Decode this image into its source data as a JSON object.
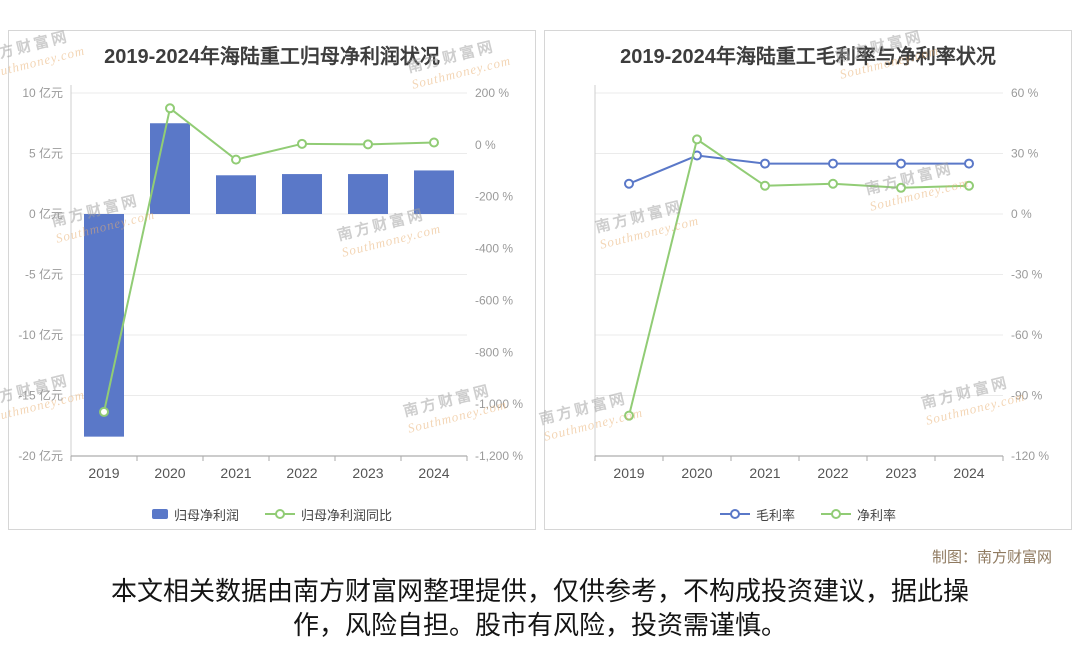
{
  "watermark": {
    "cn": "南方财富网",
    "en": "Southmoney.com"
  },
  "chart_data": [
    {
      "type": "bar",
      "title": "2019-2024年海陆重工归母净利润状况",
      "categories": [
        "2019",
        "2020",
        "2021",
        "2022",
        "2023",
        "2024"
      ],
      "bar_series": {
        "name": "归母净利润",
        "unit": "亿元",
        "color": "#5a78c8",
        "values": [
          -18.4,
          7.5,
          3.2,
          3.3,
          3.3,
          3.6
        ]
      },
      "line_series": [
        {
          "name": "归母净利润同比",
          "unit": "%",
          "color": "#91cc75",
          "values": [
            -1030,
            141,
            -57,
            4,
            2,
            9
          ]
        }
      ],
      "left_axis": {
        "ticks": [
          10,
          5,
          0,
          -5,
          -10,
          -15,
          -20
        ],
        "suffix": " 亿元",
        "min": -20,
        "max": 10
      },
      "right_axis": {
        "ticks": [
          200,
          0,
          -200,
          -400,
          -600,
          -800,
          -1000,
          -1200
        ],
        "suffix": " %",
        "min": -1200,
        "max": 200
      },
      "legend": [
        "归母净利润",
        "归母净利润同比"
      ],
      "grid": true,
      "legend_position": "bottom"
    },
    {
      "type": "line",
      "title": "2019-2024年海陆重工毛利率与净利率状况",
      "categories": [
        "2019",
        "2020",
        "2021",
        "2022",
        "2023",
        "2024"
      ],
      "line_series": [
        {
          "name": "毛利率",
          "unit": "%",
          "color": "#5a78c8",
          "values": [
            15,
            29,
            25,
            25,
            25,
            25
          ]
        },
        {
          "name": "净利率",
          "unit": "%",
          "color": "#91cc75",
          "values": [
            -100,
            37,
            14,
            15,
            13,
            14
          ]
        }
      ],
      "right_axis": {
        "ticks": [
          60,
          30,
          0,
          -30,
          -60,
          -90,
          -120
        ],
        "suffix": " %",
        "min": -120,
        "max": 60
      },
      "legend": [
        "毛利率",
        "净利率"
      ],
      "grid": true,
      "legend_position": "bottom"
    }
  ],
  "caption": "制图：南方财富网",
  "disclaimer": {
    "line1": "本文相关数据由南方财富网整理提供，仅供参考，不构成投资建议，据此操",
    "line2": "作，风险自担。股市有风险，投资需谨慎。"
  }
}
